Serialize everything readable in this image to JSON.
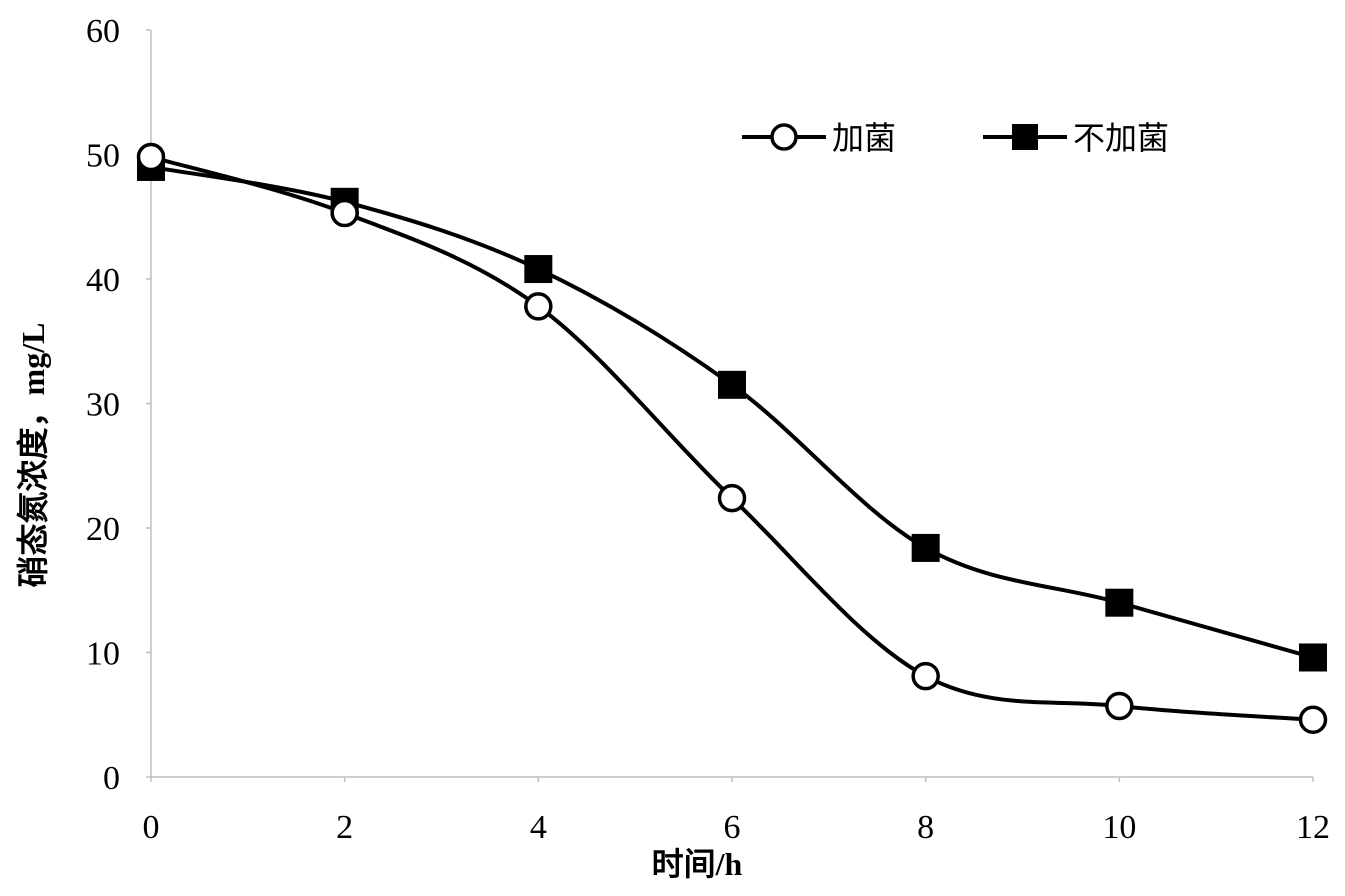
{
  "chart_data": {
    "type": "line",
    "title": "",
    "xlabel": "时间/h",
    "ylabel": "硝态氮浓度，mg/L",
    "x": [
      0,
      2,
      4,
      6,
      8,
      10,
      12
    ],
    "xlim": [
      0,
      12
    ],
    "ylim": [
      0,
      60
    ],
    "xticks": [
      "0",
      "2",
      "4",
      "6",
      "8",
      "10",
      "12"
    ],
    "yticks": [
      "0",
      "10",
      "20",
      "30",
      "40",
      "50",
      "60"
    ],
    "grid": false,
    "legend_position": "top-right",
    "smooth": true,
    "series": [
      {
        "name": "加菌",
        "marker": "open-circle",
        "color": "#000000",
        "values": [
          49.8,
          45.3,
          37.8,
          22.4,
          8.1,
          5.7,
          4.6
        ]
      },
      {
        "name": "不加菌",
        "marker": "filled-square",
        "color": "#000000",
        "values": [
          49.0,
          46.2,
          40.8,
          31.5,
          18.4,
          14.0,
          9.6
        ]
      }
    ]
  }
}
